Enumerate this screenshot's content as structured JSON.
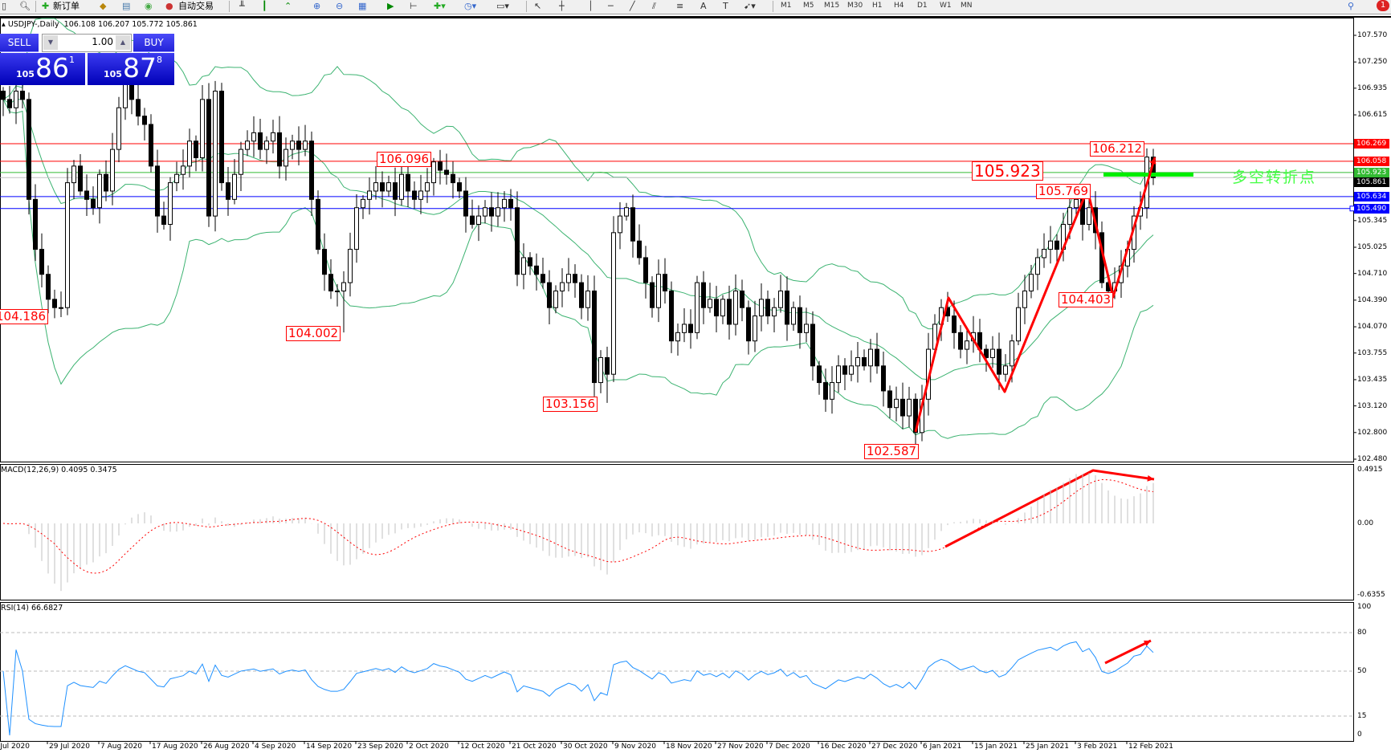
{
  "toolbar": {
    "new_order_label": "新订单",
    "auto_trading_label": "自动交易",
    "timeframes": [
      "M1",
      "M5",
      "M15",
      "M30",
      "H1",
      "H4",
      "D1",
      "W1",
      "MN"
    ],
    "notification_count": "1"
  },
  "chart_header": {
    "symbol": "USDJPY-,Daily",
    "ohlc": "106.108 106.207 105.772 105.861"
  },
  "trade_panel": {
    "sell_label": "SELL",
    "buy_label": "BUY",
    "lot": "1.00",
    "sell": {
      "prefix": "105",
      "main": "86",
      "sup": "1"
    },
    "buy": {
      "prefix": "105",
      "main": "87",
      "sup": "8"
    }
  },
  "price_axis": {
    "ticks": [
      "107.570",
      "107.250",
      "106.935",
      "106.615",
      "105.345",
      "105.025",
      "104.710",
      "104.390",
      "104.070",
      "103.755",
      "103.435",
      "103.120",
      "102.800",
      "102.480"
    ],
    "level_lines": [
      {
        "price": "106.269",
        "color": "#ff0000"
      },
      {
        "price": "106.058",
        "color": "#ff0000"
      },
      {
        "price": "105.923",
        "color": "#33bb33"
      },
      {
        "price": "105.861",
        "color": "#000000"
      },
      {
        "price": "105.634",
        "color": "#0000ff"
      },
      {
        "price": "105.490",
        "color": "#0000ff"
      }
    ]
  },
  "annotations": [
    {
      "label": "104.186",
      "bar": 9,
      "price": 104.186,
      "kind": "low"
    },
    {
      "label": "104.002",
      "bar": 53,
      "price": 104.002,
      "kind": "low"
    },
    {
      "label": "106.096",
      "bar": 67,
      "price": 106.096,
      "kind": "high"
    },
    {
      "label": "103.156",
      "bar": 94,
      "price": 103.156,
      "kind": "low"
    },
    {
      "label": "102.587",
      "bar": 142,
      "price": 102.587,
      "kind": "low"
    },
    {
      "label": "105.923",
      "bar": null,
      "price": 105.923,
      "kind": "level"
    },
    {
      "label": "105.769",
      "bar": 169,
      "price": 105.769,
      "kind": "high"
    },
    {
      "label": "104.403",
      "bar": 173,
      "price": 104.403,
      "kind": "low"
    },
    {
      "label": "106.212",
      "bar": 178,
      "price": 106.212,
      "kind": "high"
    }
  ],
  "note_text": "多空转折点",
  "macd": {
    "title": "MACD(12,26,9) 0.4095 0.3475",
    "ticks": [
      "0.4915",
      "0.00",
      "-0.6355"
    ]
  },
  "rsi": {
    "title": "RSI(14) 66.6827",
    "ticks": [
      "100",
      "80",
      "50",
      "15",
      "0"
    ],
    "levels": [
      80,
      50,
      15
    ]
  },
  "dates": [
    "20 Jul 2020",
    "29 Jul 2020",
    "7 Aug 2020",
    "17 Aug 2020",
    "26 Aug 2020",
    "4 Sep 2020",
    "14 Sep 2020",
    "23 Sep 2020",
    "2 Oct 2020",
    "12 Oct 2020",
    "21 Oct 2020",
    "30 Oct 2020",
    "9 Nov 2020",
    "18 Nov 2020",
    "27 Nov 2020",
    "7 Dec 2020",
    "16 Dec 2020",
    "27 Dec 2020",
    "6 Jan 2021",
    "15 Jan 2021",
    "25 Jan 2021",
    "3 Feb 2021",
    "12 Feb 2021"
  ],
  "colors": {
    "bands": "#3cb371",
    "rsi": "#1e90ff",
    "signal": "#ff0000",
    "histogram": "#c0c0c0",
    "arrows": "#ff0000",
    "pivot_bar": "#00ee00"
  },
  "chart_data": {
    "type": "candlestick",
    "symbol": "USDJPY",
    "timeframe": "Daily",
    "ylim": [
      102.48,
      107.57
    ],
    "closes": [
      106.8,
      106.7,
      106.9,
      106.8,
      105.6,
      105.0,
      104.7,
      104.4,
      104.3,
      104.3,
      105.8,
      106.0,
      105.7,
      105.6,
      105.5,
      105.9,
      105.7,
      106.2,
      106.7,
      107.0,
      106.8,
      106.6,
      106.5,
      106.0,
      105.4,
      105.3,
      105.8,
      105.9,
      106.0,
      106.3,
      106.1,
      106.8,
      105.4,
      106.9,
      105.8,
      105.6,
      105.9,
      106.2,
      106.3,
      106.4,
      106.2,
      106.3,
      106.4,
      106.0,
      106.2,
      106.3,
      106.2,
      106.3,
      105.6,
      105.0,
      104.7,
      104.5,
      104.5,
      104.6,
      105.0,
      105.5,
      105.6,
      105.7,
      105.8,
      105.7,
      105.8,
      105.6,
      105.9,
      105.7,
      105.6,
      105.7,
      105.8,
      106.05,
      105.95,
      105.9,
      105.8,
      105.7,
      105.4,
      105.3,
      105.4,
      105.5,
      105.4,
      105.5,
      105.6,
      105.5,
      104.7,
      104.9,
      104.8,
      104.7,
      104.6,
      104.3,
      104.5,
      104.6,
      104.7,
      104.6,
      104.3,
      104.5,
      103.4,
      103.7,
      103.5,
      105.2,
      105.4,
      105.5,
      105.1,
      104.9,
      104.6,
      104.3,
      104.7,
      104.5,
      103.9,
      104.0,
      104.1,
      104.0,
      104.6,
      104.3,
      104.4,
      104.2,
      104.4,
      104.1,
      104.5,
      104.3,
      103.9,
      104.2,
      104.4,
      104.2,
      104.3,
      104.5,
      104.1,
      104.3,
      104.0,
      104.1,
      103.6,
      103.4,
      103.2,
      103.4,
      103.6,
      103.5,
      103.6,
      103.7,
      103.6,
      103.8,
      103.6,
      103.3,
      103.1,
      103.2,
      103.0,
      103.2,
      102.8,
      103.2,
      103.8,
      104.1,
      104.3,
      104.2,
      104.0,
      103.8,
      103.9,
      104.0,
      103.8,
      103.7,
      103.8,
      103.5,
      103.6,
      103.9,
      104.3,
      104.5,
      104.7,
      104.9,
      105.0,
      105.1,
      105.0,
      105.3,
      105.5,
      105.6,
      105.3,
      105.5,
      105.2,
      104.6,
      104.5,
      104.6,
      104.8,
      105.0,
      105.4,
      105.5,
      106.108,
      105.861
    ],
    "last_bar": {
      "open": 106.108,
      "high": 106.207,
      "low": 105.772,
      "close": 105.861
    },
    "indicators": [
      "Bollinger Bands(20,2)",
      "MACD(12,26,9)",
      "RSI(14)"
    ]
  }
}
